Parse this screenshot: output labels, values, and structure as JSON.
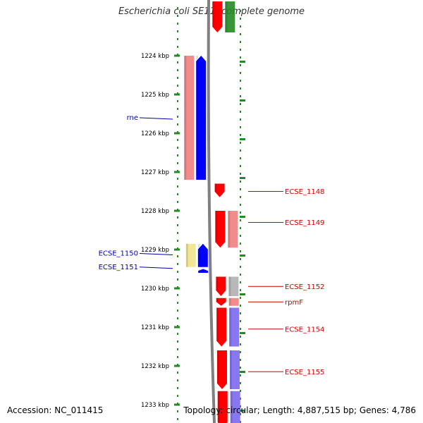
{
  "title": "Escherichia coli SE11, complete genome",
  "footer": {
    "accession": "Accession: NC_011415",
    "topology": "Topology: circular; Length: 4,887,515 bp; Genes: 4,786"
  },
  "scale": {
    "ticks": [
      {
        "label": "1224 kbp",
        "kbp": 1224
      },
      {
        "label": "1225 kbp",
        "kbp": 1225
      },
      {
        "label": "1226 kbp",
        "kbp": 1226
      },
      {
        "label": "1227 kbp",
        "kbp": 1227
      },
      {
        "label": "1228 kbp",
        "kbp": 1228
      },
      {
        "label": "1229 kbp",
        "kbp": 1229
      },
      {
        "label": "1230 kbp",
        "kbp": 1230
      },
      {
        "label": "1231 kbp",
        "kbp": 1231
      },
      {
        "label": "1232 kbp",
        "kbp": 1232
      },
      {
        "label": "1233 kbp",
        "kbp": 1233
      }
    ]
  },
  "colors": {
    "forward_gene": "#ff0000",
    "forward_cds": "#f08080",
    "reverse_gene": "#0000ff",
    "reverse_cds": "#f08080",
    "trna": "#228b22",
    "other": "#b0b0b0",
    "hypothetical": "#7b68ee",
    "pseudo": "#f0e68c",
    "label_forward": "#cc0000",
    "label_reverse": "#0000aa",
    "tick": "#228b22",
    "backbone": "#808080"
  },
  "labels_left": [
    {
      "text": "rne",
      "kbp": 1225.6
    },
    {
      "text": "ECSE_1150",
      "kbp": 1229.1
    },
    {
      "text": "ECSE_1151",
      "kbp": 1229.45
    }
  ],
  "labels_right": [
    {
      "text": "ECSE_1148",
      "kbp": 1227.5
    },
    {
      "text": "ECSE_1149",
      "kbp": 1228.3
    },
    {
      "text": "ECSE_1152",
      "kbp": 1229.95
    },
    {
      "text": "rpmF",
      "kbp": 1230.35
    },
    {
      "text": "ECSE_1154",
      "kbp": 1231.05
    },
    {
      "text": "ECSE_1155",
      "kbp": 1232.15
    }
  ],
  "features": [
    {
      "track": "fwd-gene",
      "start": 1222.6,
      "end": 1223.4,
      "type": "forward_gene"
    },
    {
      "track": "fwd-cds",
      "start": 1222.6,
      "end": 1223.4,
      "type": "trna"
    },
    {
      "track": "rev-cds",
      "start": 1224.0,
      "end": 1227.2,
      "type": "reverse_cds"
    },
    {
      "track": "rev-gene",
      "start": 1224.0,
      "end": 1227.2,
      "type": "reverse_gene"
    },
    {
      "track": "fwd-gene",
      "start": 1227.3,
      "end": 1227.65,
      "type": "forward_gene"
    },
    {
      "track": "fwd-gene",
      "start": 1228.0,
      "end": 1228.95,
      "type": "forward_gene"
    },
    {
      "track": "fwd-cds",
      "start": 1228.0,
      "end": 1228.95,
      "type": "forward_cds"
    },
    {
      "track": "rev-cds",
      "start": 1228.85,
      "end": 1229.45,
      "type": "pseudo"
    },
    {
      "track": "rev-gene",
      "start": 1228.85,
      "end": 1229.45,
      "type": "reverse_gene"
    },
    {
      "track": "rev-gene",
      "start": 1229.5,
      "end": 1229.6,
      "type": "reverse_gene"
    },
    {
      "track": "fwd-gene",
      "start": 1229.7,
      "end": 1230.2,
      "type": "forward_gene"
    },
    {
      "track": "fwd-cds",
      "start": 1229.7,
      "end": 1230.2,
      "type": "other"
    },
    {
      "track": "fwd-gene",
      "start": 1230.25,
      "end": 1230.45,
      "type": "forward_gene"
    },
    {
      "track": "fwd-cds",
      "start": 1230.25,
      "end": 1230.45,
      "type": "forward_cds"
    },
    {
      "track": "fwd-gene",
      "start": 1230.5,
      "end": 1231.5,
      "type": "forward_gene"
    },
    {
      "track": "fwd-cds",
      "start": 1230.5,
      "end": 1231.5,
      "type": "hypothetical"
    },
    {
      "track": "fwd-gene",
      "start": 1231.6,
      "end": 1232.6,
      "type": "forward_gene"
    },
    {
      "track": "fwd-cds",
      "start": 1231.6,
      "end": 1232.6,
      "type": "hypothetical"
    },
    {
      "track": "fwd-gene",
      "start": 1232.65,
      "end": 1233.6,
      "type": "forward_gene"
    },
    {
      "track": "fwd-cds",
      "start": 1232.65,
      "end": 1233.6,
      "type": "hypothetical"
    }
  ]
}
